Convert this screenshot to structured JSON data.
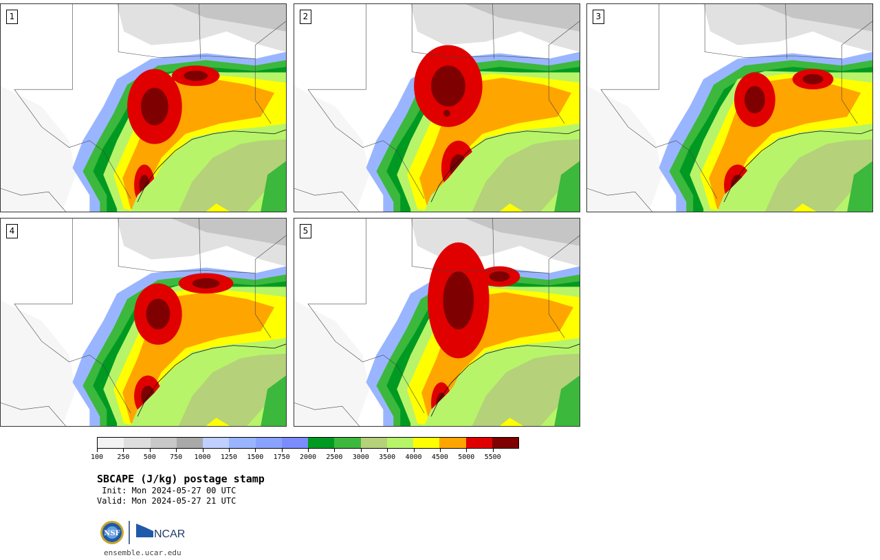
{
  "panels": [
    {
      "label": "1"
    },
    {
      "label": "2"
    },
    {
      "label": "3"
    },
    {
      "label": "4"
    },
    {
      "label": "5"
    }
  ],
  "colorbar": {
    "colors": [
      "#f2f2f2",
      "#dedede",
      "#c8c8c8",
      "#a9a9a9",
      "#bfcfff",
      "#9ab5ff",
      "#8aa2ff",
      "#7b8cff",
      "#009a22",
      "#3cb83c",
      "#b5d17a",
      "#b7f46a",
      "#ffff00",
      "#ffa500",
      "#e00000",
      "#7f0000"
    ],
    "tick_labels": [
      "100",
      "250",
      "500",
      "750",
      "1000",
      "1250",
      "1500",
      "1750",
      "2000",
      "2500",
      "3000",
      "3500",
      "4000",
      "4500",
      "5000",
      "5500"
    ]
  },
  "title": "SBCAPE (J/kg) postage stamp",
  "init": " Init: Mon 2024-05-27 00 UTC",
  "valid": "Valid: Mon 2024-05-27 21 UTC",
  "logos": {
    "nsf": "NSF",
    "ncar": "NCAR"
  },
  "footer_url": "ensemble.ucar.edu"
}
